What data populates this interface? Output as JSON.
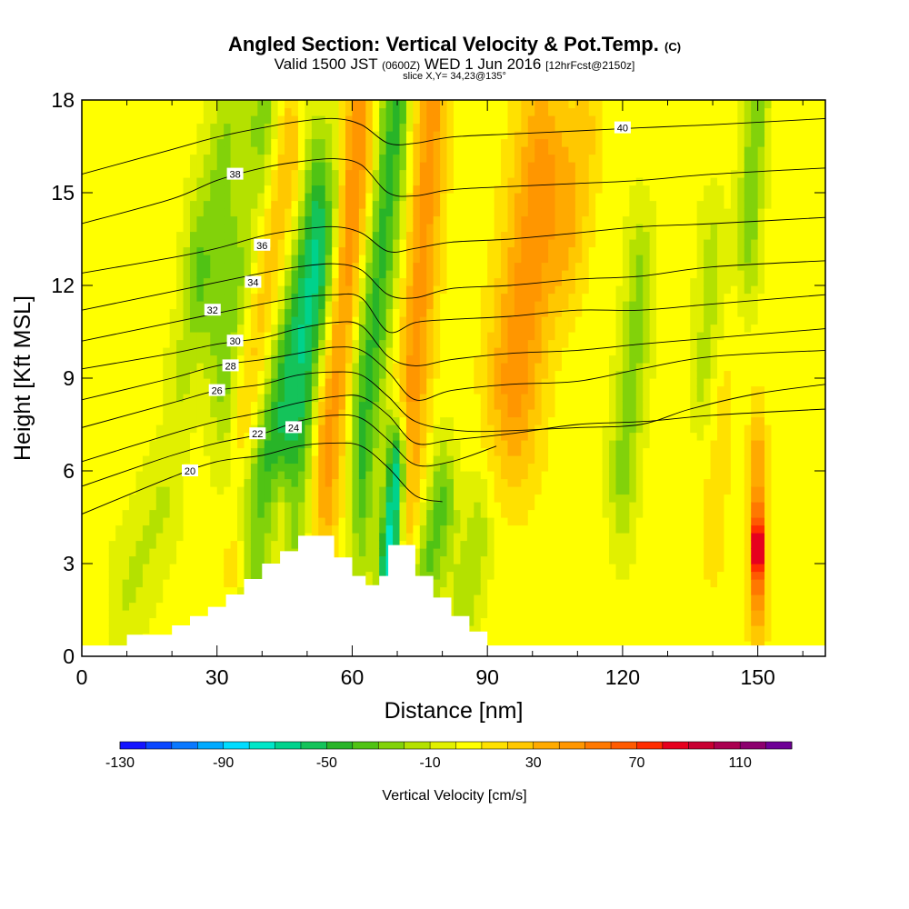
{
  "title": {
    "main": "Angled Section: Vertical Velocity & Pot.Temp.",
    "main_unit": "(C)",
    "valid_a": "Valid 1500 JST",
    "valid_b": "(0600Z)",
    "valid_c": "WED 1 Jun 2016",
    "valid_d": "[12hrFcst@2150z]",
    "slice": "slice X,Y= 34,23@135°"
  },
  "chart_data": {
    "type": "heatmap",
    "xlabel": "Distance [nm]",
    "ylabel": "Height [Kft MSL]",
    "xlim": [
      0,
      165
    ],
    "ylim": [
      0,
      18
    ],
    "x_ticks": [
      0,
      30,
      60,
      90,
      120,
      150
    ],
    "y_ticks": [
      0,
      3,
      6,
      9,
      12,
      15,
      18
    ],
    "terrain_kft": [
      [
        0,
        0.35
      ],
      [
        10,
        0.7
      ],
      [
        20,
        1.0
      ],
      [
        24,
        1.3
      ],
      [
        28,
        1.6
      ],
      [
        32,
        2.0
      ],
      [
        36,
        2.5
      ],
      [
        40,
        3.0
      ],
      [
        44,
        3.4
      ],
      [
        48,
        3.9
      ],
      [
        52,
        3.9
      ],
      [
        56,
        3.2
      ],
      [
        60,
        2.6
      ],
      [
        63,
        2.3
      ],
      [
        66,
        2.6
      ],
      [
        68,
        3.6
      ],
      [
        72,
        3.6
      ],
      [
        74,
        2.6
      ],
      [
        78,
        1.9
      ],
      [
        82,
        1.3
      ],
      [
        86,
        0.8
      ],
      [
        90,
        0.35
      ],
      [
        165,
        0.35
      ]
    ],
    "colorbar": {
      "title": "Vertical Velocity [cm/s]",
      "levels": [
        -130,
        -120,
        -110,
        -100,
        -90,
        -80,
        -70,
        -60,
        -50,
        -40,
        -30,
        -20,
        -10,
        0,
        10,
        20,
        30,
        40,
        50,
        60,
        70,
        80,
        90,
        100,
        110,
        120
      ],
      "tick_labels": [
        -130,
        -90,
        -50,
        -10,
        30,
        70,
        110
      ],
      "colors": [
        "#1414ff",
        "#0a46ff",
        "#0a78ff",
        "#00aaff",
        "#00dcff",
        "#00e6c8",
        "#00d28c",
        "#14c35a",
        "#28b428",
        "#50c314",
        "#82d20a",
        "#b4e100",
        "#e1f000",
        "#ffff00",
        "#ffe100",
        "#ffc800",
        "#ffaa00",
        "#ff9600",
        "#ff7800",
        "#ff5a00",
        "#ff2d00",
        "#e6001e",
        "#c80032",
        "#aa0050",
        "#8c006e",
        "#6e0096"
      ]
    },
    "velocity_features": [
      {
        "x0": 38,
        "x1": 52,
        "y0": 3.5,
        "y1": 13.5,
        "w": -55,
        "sx": 3.0,
        "sy": 3.5
      },
      {
        "x0": 32,
        "x1": 40,
        "y0": 10,
        "y1": 18,
        "w": -35,
        "sx": 4.0,
        "sy": 3.5
      },
      {
        "x0": 26,
        "x1": 34,
        "y0": 13,
        "y1": 18,
        "w": -22,
        "sx": 3.0,
        "sy": 2.5
      },
      {
        "x0": 47,
        "x1": 56,
        "y0": 5,
        "y1": 14,
        "w": -30,
        "sx": 2.0,
        "sy": 3.5
      },
      {
        "x0": 68,
        "x1": 70,
        "y0": 2.5,
        "y1": 6,
        "w": -88,
        "sx": 2.2,
        "sy": 1.8
      },
      {
        "x0": 62,
        "x1": 70,
        "y0": 7,
        "y1": 18,
        "w": -48,
        "sx": 2.5,
        "sy": 4.5
      },
      {
        "x0": 74,
        "x1": 80,
        "y0": 1.5,
        "y1": 5,
        "w": -38,
        "sx": 3.0,
        "sy": 2.0
      },
      {
        "x0": 36,
        "x1": 46,
        "y0": 8,
        "y1": 16,
        "w": 30,
        "sx": 3.0,
        "sy": 3.0
      },
      {
        "x0": 54,
        "x1": 62,
        "y0": 7,
        "y1": 17,
        "w": 45,
        "sx": 3.0,
        "sy": 4.0
      },
      {
        "x0": 72,
        "x1": 78,
        "y0": 6,
        "y1": 18,
        "w": 40,
        "sx": 3.0,
        "sy": 5.0
      },
      {
        "x0": 96,
        "x1": 102,
        "y0": 9,
        "y1": 15.5,
        "w": 42,
        "sx": 6.0,
        "sy": 3.5
      },
      {
        "x0": 36,
        "x1": 36,
        "y0": 15,
        "y1": 18,
        "w": 20,
        "sx": 3.0,
        "sy": 2.0
      },
      {
        "x0": 108,
        "x1": 112,
        "y0": 13,
        "y1": 17,
        "w": 18,
        "sx": 4.0,
        "sy": 2.0
      },
      {
        "x0": 120,
        "x1": 124,
        "y0": 6,
        "y1": 12,
        "w": -28,
        "sx": 3.0,
        "sy": 2.5
      },
      {
        "x0": 148,
        "x1": 150,
        "y0": 14,
        "y1": 18,
        "w": -32,
        "sx": 2.5,
        "sy": 2.5
      },
      {
        "x0": 138,
        "x1": 140,
        "y0": 9,
        "y1": 13,
        "w": -18,
        "sx": 3.0,
        "sy": 2.0
      },
      {
        "x0": 22,
        "x1": 26,
        "y0": 9,
        "y1": 12,
        "w": -16,
        "sx": 3.0,
        "sy": 2.0
      },
      {
        "x0": 84,
        "x1": 88,
        "y0": 1,
        "y1": 4,
        "w": -20,
        "sx": 3.0,
        "sy": 2.0
      },
      {
        "x0": 10,
        "x1": 18,
        "y0": 2,
        "y1": 5,
        "w": -15,
        "sx": 4.0,
        "sy": 2.0
      },
      {
        "x0": 36,
        "x1": 44,
        "y0": 3,
        "y1": 5,
        "w": 22,
        "sx": 4.0,
        "sy": 1.5
      },
      {
        "x0": 150,
        "x1": 150,
        "y0": 3.5,
        "y1": 3.5,
        "w": 75,
        "sx": 1.3,
        "sy": 1.3
      },
      {
        "x0": 150,
        "x1": 150,
        "y0": 2,
        "y1": 6,
        "w": 35,
        "sx": 2.0,
        "sy": 2.2
      },
      {
        "x0": 140,
        "x1": 142,
        "y0": 4,
        "y1": 8,
        "w": 12,
        "sx": 3.0,
        "sy": 2.0
      }
    ],
    "isentropes_C": [
      {
        "value": 20,
        "label_at": [
          24,
          6.0
        ],
        "pts": [
          [
            0,
            4.6
          ],
          [
            20,
            5.8
          ],
          [
            30,
            6.3
          ],
          [
            40,
            6.5
          ],
          [
            48,
            6.8
          ],
          [
            56,
            6.9
          ],
          [
            62,
            6.8
          ],
          [
            68,
            6.1
          ],
          [
            74,
            5.2
          ],
          [
            80,
            5.0
          ]
        ]
      },
      {
        "value": 22,
        "label_at": [
          39,
          7.2
        ],
        "pts": [
          [
            0,
            5.5
          ],
          [
            20,
            6.5
          ],
          [
            30,
            6.9
          ],
          [
            40,
            7.2
          ],
          [
            48,
            7.6
          ],
          [
            56,
            7.8
          ],
          [
            62,
            7.7
          ],
          [
            68,
            7.0
          ],
          [
            74,
            6.2
          ],
          [
            82,
            6.3
          ],
          [
            92,
            6.8
          ]
        ]
      },
      {
        "value": 24,
        "label_at": [
          47,
          7.4
        ],
        "pts": [
          [
            0,
            6.3
          ],
          [
            20,
            7.2
          ],
          [
            30,
            7.6
          ],
          [
            40,
            7.9
          ],
          [
            48,
            8.2
          ],
          [
            56,
            8.4
          ],
          [
            62,
            8.4
          ],
          [
            68,
            7.8
          ],
          [
            74,
            6.9
          ],
          [
            82,
            7.0
          ],
          [
            95,
            7.2
          ],
          [
            110,
            7.5
          ],
          [
            125,
            7.6
          ],
          [
            140,
            7.8
          ],
          [
            165,
            8.0
          ]
        ]
      },
      {
        "value": 26,
        "label_at": [
          30,
          8.6
        ],
        "pts": [
          [
            0,
            7.4
          ],
          [
            20,
            8.2
          ],
          [
            30,
            8.6
          ],
          [
            40,
            8.8
          ],
          [
            48,
            9.1
          ],
          [
            56,
            9.2
          ],
          [
            62,
            9.1
          ],
          [
            68,
            8.4
          ],
          [
            74,
            7.6
          ],
          [
            84,
            7.3
          ],
          [
            95,
            7.3
          ],
          [
            110,
            7.4
          ],
          [
            124,
            7.5
          ],
          [
            135,
            8.0
          ],
          [
            150,
            8.5
          ],
          [
            165,
            8.8
          ]
        ]
      },
      {
        "value": 28,
        "label_at": [
          33,
          9.4
        ],
        "pts": [
          [
            0,
            8.3
          ],
          [
            20,
            9.0
          ],
          [
            30,
            9.4
          ],
          [
            40,
            9.6
          ],
          [
            48,
            9.8
          ],
          [
            56,
            10.0
          ],
          [
            62,
            9.9
          ],
          [
            68,
            9.2
          ],
          [
            74,
            8.3
          ],
          [
            82,
            8.6
          ],
          [
            95,
            8.8
          ],
          [
            110,
            8.9
          ],
          [
            124,
            9.3
          ],
          [
            140,
            9.7
          ],
          [
            165,
            9.9
          ]
        ]
      },
      {
        "value": 30,
        "label_at": [
          34,
          10.2
        ],
        "pts": [
          [
            0,
            9.3
          ],
          [
            20,
            9.8
          ],
          [
            30,
            10.1
          ],
          [
            40,
            10.3
          ],
          [
            48,
            10.6
          ],
          [
            56,
            10.8
          ],
          [
            62,
            10.7
          ],
          [
            68,
            9.7
          ],
          [
            74,
            9.4
          ],
          [
            82,
            9.6
          ],
          [
            95,
            9.8
          ],
          [
            110,
            9.9
          ],
          [
            124,
            10.1
          ],
          [
            140,
            10.3
          ],
          [
            165,
            10.6
          ]
        ]
      },
      {
        "value": 32,
        "label_at": [
          29,
          11.2
        ],
        "pts": [
          [
            0,
            10.2
          ],
          [
            20,
            10.8
          ],
          [
            30,
            11.1
          ],
          [
            40,
            11.4
          ],
          [
            48,
            11.6
          ],
          [
            56,
            11.7
          ],
          [
            62,
            11.6
          ],
          [
            68,
            10.5
          ],
          [
            74,
            10.8
          ],
          [
            82,
            10.9
          ],
          [
            95,
            11.0
          ],
          [
            110,
            11.2
          ],
          [
            124,
            11.2
          ],
          [
            140,
            11.4
          ],
          [
            165,
            11.7
          ]
        ]
      },
      {
        "value": 34,
        "label_at": [
          38,
          12.1
        ],
        "pts": [
          [
            0,
            11.2
          ],
          [
            20,
            11.8
          ],
          [
            30,
            12.1
          ],
          [
            40,
            12.4
          ],
          [
            48,
            12.6
          ],
          [
            56,
            12.7
          ],
          [
            62,
            12.5
          ],
          [
            68,
            11.7
          ],
          [
            74,
            11.6
          ],
          [
            82,
            11.9
          ],
          [
            95,
            12.0
          ],
          [
            110,
            12.2
          ],
          [
            124,
            12.3
          ],
          [
            140,
            12.6
          ],
          [
            165,
            12.8
          ]
        ]
      },
      {
        "value": 36,
        "label_at": [
          40,
          13.3
        ],
        "pts": [
          [
            0,
            12.4
          ],
          [
            20,
            12.9
          ],
          [
            30,
            13.2
          ],
          [
            40,
            13.6
          ],
          [
            48,
            13.8
          ],
          [
            56,
            13.9
          ],
          [
            62,
            13.7
          ],
          [
            68,
            13.1
          ],
          [
            74,
            13.2
          ],
          [
            82,
            13.4
          ],
          [
            95,
            13.5
          ],
          [
            110,
            13.7
          ],
          [
            124,
            13.9
          ],
          [
            140,
            14.0
          ],
          [
            165,
            14.2
          ]
        ]
      },
      {
        "value": 38,
        "label_at": [
          34,
          15.6
        ],
        "pts": [
          [
            0,
            14.0
          ],
          [
            20,
            14.8
          ],
          [
            30,
            15.4
          ],
          [
            40,
            15.8
          ],
          [
            48,
            16.0
          ],
          [
            56,
            16.1
          ],
          [
            62,
            15.9
          ],
          [
            68,
            15.0
          ],
          [
            74,
            14.9
          ],
          [
            82,
            15.1
          ],
          [
            95,
            15.2
          ],
          [
            110,
            15.3
          ],
          [
            124,
            15.4
          ],
          [
            140,
            15.6
          ],
          [
            165,
            15.8
          ]
        ]
      },
      {
        "value": 40,
        "label_at": [
          120,
          17.1
        ],
        "pts": [
          [
            0,
            15.6
          ],
          [
            20,
            16.4
          ],
          [
            30,
            16.8
          ],
          [
            40,
            17.1
          ],
          [
            48,
            17.3
          ],
          [
            56,
            17.4
          ],
          [
            62,
            17.2
          ],
          [
            68,
            16.6
          ],
          [
            74,
            16.6
          ],
          [
            82,
            16.8
          ],
          [
            95,
            16.9
          ],
          [
            110,
            17.0
          ],
          [
            124,
            17.1
          ],
          [
            140,
            17.2
          ],
          [
            165,
            17.4
          ]
        ]
      }
    ]
  }
}
